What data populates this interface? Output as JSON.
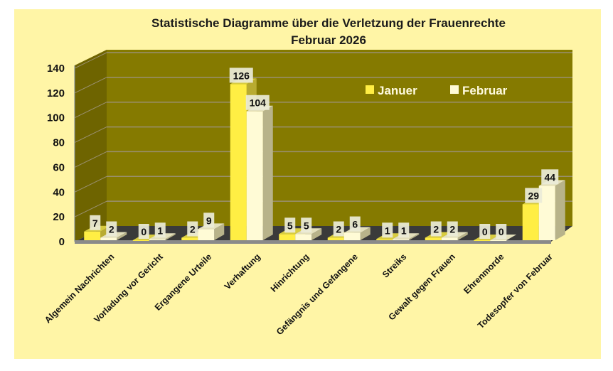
{
  "chart_data": {
    "type": "bar",
    "title": "Statistische Diagramme über die Verletzung der Frauenrechte",
    "subtitle": "Februar 2026",
    "xlabel": "",
    "ylabel": "",
    "ylim": [
      0,
      140
    ],
    "yticks": [
      0,
      20,
      40,
      60,
      80,
      100,
      120,
      140
    ],
    "grid": true,
    "legend_position": "top-right",
    "categories": [
      "Algemein Nachrichten",
      "Vorladung vor Gericht",
      "Ergangene Urteile",
      "Verhaftung",
      "Hinrichtung",
      "Gefängnis und Gefangene",
      "Streiks",
      "Gewalt gegen Frauen",
      "Ehrenmorde",
      "Todesopfer von Februar"
    ],
    "series": [
      {
        "name": "Januer",
        "color": "#ffee44",
        "values": [
          7,
          0,
          2,
          126,
          5,
          2,
          1,
          2,
          0,
          29
        ]
      },
      {
        "name": "Februar",
        "color": "#fffbd6",
        "values": [
          2,
          1,
          9,
          104,
          5,
          6,
          1,
          2,
          0,
          44
        ]
      }
    ]
  },
  "colors": {
    "background": "#fff5a6",
    "wall": "#857a00",
    "side_wall": "#6e6400",
    "floor": "#3a3a3a"
  }
}
